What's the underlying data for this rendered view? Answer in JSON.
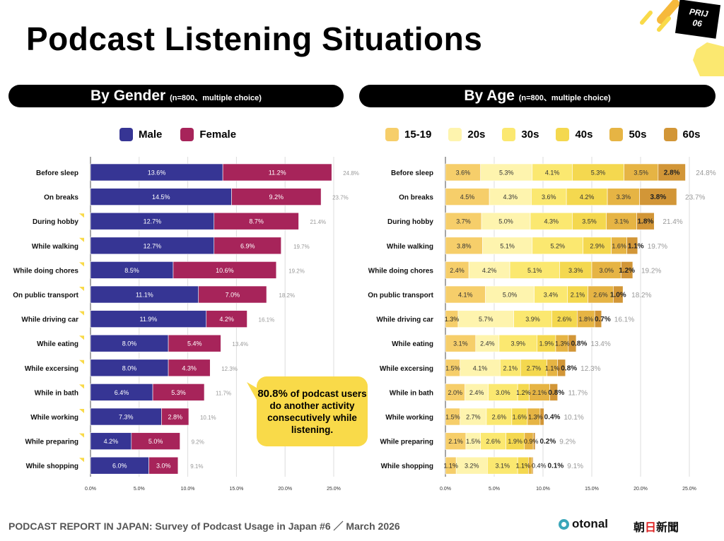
{
  "title": "Podcast Listening Situations",
  "footer": "PODCAST REPORT IN JAPAN: Survey of Podcast Usage in Japan #6 ／ March 2026",
  "logos": {
    "otonal": "otonal",
    "asahi": "朝日新聞",
    "badge_line1": "PRIJ",
    "badge_line2": "06"
  },
  "callout": {
    "highlight": "80.8%",
    "text": " of podcast users do another activity consecutively while listening."
  },
  "chart_data": [
    {
      "type": "bar",
      "stacked": true,
      "orientation": "horizontal",
      "title": "By Gender",
      "subtitle": "(n=800、multiple choice)",
      "categories": [
        "Before sleep",
        "On breaks",
        "During hobby",
        "While walking",
        "While doing chores",
        "On public transport",
        "While driving car",
        "While eating",
        "While excersing",
        "While in bath",
        "While working",
        "While preparing",
        "While shopping"
      ],
      "series": [
        {
          "name": "Male",
          "color": "#363594",
          "values": [
            13.6,
            14.5,
            12.7,
            12.7,
            8.5,
            11.1,
            11.9,
            8.0,
            8.0,
            6.4,
            7.3,
            4.2,
            6.0
          ]
        },
        {
          "name": "Female",
          "color": "#A7245A",
          "values": [
            11.2,
            9.2,
            8.7,
            6.9,
            10.6,
            7.0,
            4.2,
            5.4,
            4.3,
            5.3,
            2.8,
            5.0,
            3.0
          ]
        }
      ],
      "totals": [
        24.8,
        23.7,
        21.4,
        19.7,
        19.2,
        18.2,
        16.1,
        13.4,
        12.3,
        11.7,
        10.1,
        9.2,
        9.1
      ],
      "xlim": [
        0,
        25
      ],
      "xticks": [
        "0.0%",
        "5.0%",
        "10.0%",
        "15.0%",
        "20.0%",
        "25.0%"
      ],
      "grid": true,
      "legend": "top"
    },
    {
      "type": "bar",
      "stacked": true,
      "orientation": "horizontal",
      "title": "By Age",
      "subtitle": "(n=800、multiple choice)",
      "categories": [
        "Before sleep",
        "On breaks",
        "During hobby",
        "While walking",
        "While doing chores",
        "On public transport",
        "While driving car",
        "While eating",
        "While excersing",
        "While in bath",
        "While working",
        "While preparing",
        "While shopping"
      ],
      "series": [
        {
          "name": "15-19",
          "color": "#F6CE6A",
          "values": [
            3.6,
            4.5,
            3.7,
            3.8,
            2.4,
            4.1,
            1.3,
            3.1,
            1.5,
            2.0,
            1.5,
            2.1,
            1.1
          ]
        },
        {
          "name": "20s",
          "color": "#FEF4AE",
          "values": [
            5.3,
            4.3,
            5.0,
            5.1,
            4.2,
            5.0,
            5.7,
            2.4,
            4.1,
            2.4,
            2.7,
            1.5,
            3.2
          ]
        },
        {
          "name": "30s",
          "color": "#FBE870",
          "values": [
            4.1,
            3.6,
            4.3,
            5.2,
            5.1,
            3.4,
            3.9,
            3.9,
            2.1,
            3.0,
            2.6,
            2.6,
            3.1
          ]
        },
        {
          "name": "40s",
          "color": "#F4D84F",
          "values": [
            5.3,
            4.2,
            3.5,
            2.9,
            3.3,
            2.1,
            2.6,
            1.9,
            2.7,
            1.2,
            1.6,
            1.9,
            1.1
          ]
        },
        {
          "name": "50s",
          "color": "#E6B444",
          "values": [
            3.5,
            3.3,
            3.1,
            1.6,
            3.0,
            2.6,
            1.8,
            1.3,
            1.1,
            2.1,
            1.3,
            0.9,
            0.4
          ]
        },
        {
          "name": "60s",
          "color": "#D29637",
          "values": [
            2.8,
            3.8,
            1.8,
            1.1,
            1.2,
            1.0,
            0.7,
            0.8,
            0.8,
            0.8,
            0.4,
            0.2,
            0.1
          ]
        }
      ],
      "totals": [
        24.8,
        23.7,
        21.4,
        19.7,
        19.2,
        18.2,
        16.1,
        13.4,
        12.3,
        11.7,
        10.1,
        9.2,
        9.1
      ],
      "xlim": [
        0,
        25
      ],
      "xticks": [
        "0.0%",
        "5.0%",
        "10.0%",
        "15.0%",
        "20.0%",
        "25.0%"
      ],
      "grid": true,
      "legend": "top"
    }
  ]
}
